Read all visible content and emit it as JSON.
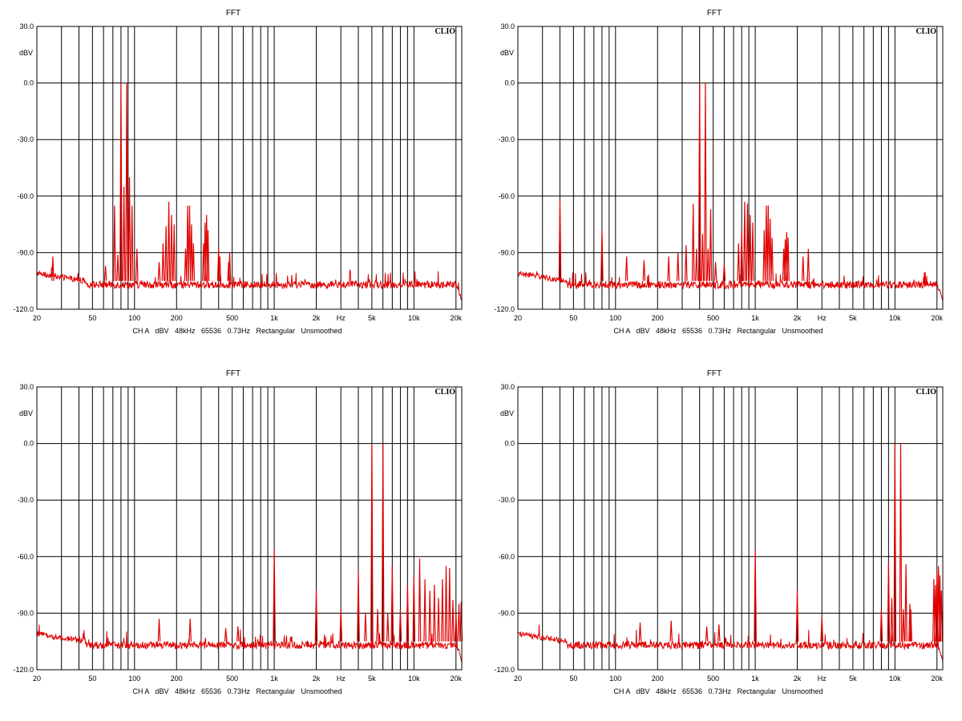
{
  "charts": [
    {
      "id": "fft-80hz"
    },
    {
      "id": "fft-400hz"
    },
    {
      "id": "fft-5khz"
    },
    {
      "id": "fft-10khz"
    }
  ],
  "colors": {
    "trace": "#e00000",
    "grid": "#000000",
    "background": "#ffffff"
  },
  "chart_data": [
    {
      "type": "line",
      "title": "FFT",
      "brand": "CLIO",
      "ylabel": "dBV",
      "xlabel": "Hz",
      "info": "CH A   dBV   48kHz   65536   0.73Hz   Rectangular   Unsmoothed",
      "xscale": "log",
      "xlim": [
        20,
        22000
      ],
      "ylim": [
        -120,
        30
      ],
      "y_ticks": [
        "30.0",
        "0.0",
        "-30.0",
        "-60.0",
        "-90.0",
        "-120.0"
      ],
      "y_tick_values": [
        30,
        0,
        -30,
        -60,
        -90,
        -120
      ],
      "x_ticks": [
        "20",
        "50",
        "100",
        "200",
        "500",
        "1k",
        "2k",
        "5k",
        "10k",
        "20k"
      ],
      "x_tick_values": [
        20,
        50,
        100,
        200,
        500,
        1000,
        2000,
        5000,
        10000,
        20000
      ],
      "noise_floor_db": -107,
      "series": [
        {
          "values": [
            [
              80,
              0
            ],
            [
              88,
              0
            ],
            [
              26,
              -92
            ],
            [
              62,
              -97
            ],
            [
              72,
              -65
            ],
            [
              76,
              -91
            ],
            [
              84,
              -55
            ],
            [
              92,
              -50
            ],
            [
              96,
              -65
            ],
            [
              104,
              -88
            ],
            [
              150,
              -95
            ],
            [
              160,
              -85
            ],
            [
              168,
              -76
            ],
            [
              176,
              -63
            ],
            [
              184,
              -70
            ],
            [
              192,
              -75
            ],
            [
              232,
              -88
            ],
            [
              240,
              -65
            ],
            [
              248,
              -65
            ],
            [
              256,
              -75
            ],
            [
              264,
              -85
            ],
            [
              312,
              -85
            ],
            [
              320,
              -74
            ],
            [
              328,
              -70
            ],
            [
              336,
              -78
            ],
            [
              400,
              -88
            ],
            [
              408,
              -92
            ],
            [
              472,
              -95
            ],
            [
              480,
              -90
            ]
          ]
        }
      ]
    },
    {
      "type": "line",
      "title": "FFT",
      "brand": "CLIO",
      "ylabel": "dBV",
      "xlabel": "Hz",
      "info": "CH A   dBV   48kHz   65536   0.73Hz   Rectangular   Unsmoothed",
      "xscale": "log",
      "xlim": [
        20,
        22000
      ],
      "ylim": [
        -120,
        30
      ],
      "y_ticks": [
        "30.0",
        "0.0",
        "-30.0",
        "-60.0",
        "-90.0",
        "-120.0"
      ],
      "y_tick_values": [
        30,
        0,
        -30,
        -60,
        -90,
        -120
      ],
      "x_ticks": [
        "20",
        "50",
        "100",
        "200",
        "500",
        "1k",
        "2k",
        "5k",
        "10k",
        "20k"
      ],
      "x_tick_values": [
        20,
        50,
        100,
        200,
        500,
        1000,
        2000,
        5000,
        10000,
        20000
      ],
      "noise_floor_db": -107,
      "series": [
        {
          "values": [
            [
              400,
              0
            ],
            [
              440,
              0
            ],
            [
              40,
              -62
            ],
            [
              80,
              -78
            ],
            [
              120,
              -92
            ],
            [
              160,
              -94
            ],
            [
              240,
              -92
            ],
            [
              280,
              -90
            ],
            [
              320,
              -86
            ],
            [
              360,
              -64
            ],
            [
              380,
              -88
            ],
            [
              420,
              -80
            ],
            [
              460,
              -88
            ],
            [
              480,
              -67
            ],
            [
              520,
              -95
            ],
            [
              600,
              -96
            ],
            [
              760,
              -85
            ],
            [
              800,
              -78
            ],
            [
              840,
              -63
            ],
            [
              880,
              -64
            ],
            [
              920,
              -70
            ],
            [
              960,
              -74
            ],
            [
              1160,
              -78
            ],
            [
              1200,
              -65
            ],
            [
              1240,
              -65
            ],
            [
              1280,
              -72
            ],
            [
              1320,
              -82
            ],
            [
              1600,
              -88
            ],
            [
              1640,
              -83
            ],
            [
              1680,
              -79
            ],
            [
              1720,
              -82
            ],
            [
              2200,
              -92
            ],
            [
              2400,
              -88
            ]
          ]
        }
      ]
    },
    {
      "type": "line",
      "title": "FFT",
      "brand": "CLIO",
      "ylabel": "dBV",
      "xlabel": "Hz",
      "info": "CH A   dBV   48kHz   65536   0.73Hz   Rectangular   Unsmoothed",
      "xscale": "log",
      "xlim": [
        20,
        22000
      ],
      "ylim": [
        -120,
        30
      ],
      "y_ticks": [
        "30.0",
        "0.0",
        "-30.0",
        "-60.0",
        "-90.0",
        "-120.0"
      ],
      "y_tick_values": [
        30,
        0,
        -30,
        -60,
        -90,
        -120
      ],
      "x_ticks": [
        "20",
        "50",
        "100",
        "200",
        "500",
        "1k",
        "2k",
        "5k",
        "10k",
        "20k"
      ],
      "x_tick_values": [
        20,
        50,
        100,
        200,
        500,
        1000,
        2000,
        5000,
        10000,
        20000
      ],
      "noise_floor_db": -107,
      "series": [
        {
          "values": [
            [
              5000,
              0
            ],
            [
              6000,
              0
            ],
            [
              150,
              -93
            ],
            [
              250,
              -93
            ],
            [
              450,
              -98
            ],
            [
              550,
              -97
            ],
            [
              1000,
              -56
            ],
            [
              2000,
              -78
            ],
            [
              3000,
              -88
            ],
            [
              4000,
              -68
            ],
            [
              4500,
              -90
            ],
            [
              5500,
              -88
            ],
            [
              6500,
              -90
            ],
            [
              7000,
              -65
            ],
            [
              8000,
              -88
            ],
            [
              9000,
              -75
            ],
            [
              10000,
              -70
            ],
            [
              11000,
              -61
            ],
            [
              12000,
              -72
            ],
            [
              13000,
              -78
            ],
            [
              14000,
              -75
            ],
            [
              15000,
              -82
            ],
            [
              16000,
              -72
            ],
            [
              17000,
              -65
            ],
            [
              18000,
              -66
            ],
            [
              19000,
              -83
            ],
            [
              20000,
              -90
            ],
            [
              21000,
              -85
            ],
            [
              21800,
              -84
            ]
          ]
        }
      ]
    },
    {
      "type": "line",
      "title": "FFT",
      "brand": "CLIO",
      "ylabel": "dBV",
      "xlabel": "Hz",
      "info": "CH A   dBV   48kHz   65536   0.73Hz   Rectangular   Unsmoothed",
      "xscale": "log",
      "xlim": [
        20,
        22000
      ],
      "ylim": [
        -120,
        30
      ],
      "y_ticks": [
        "30.0",
        "0.0",
        "-30.0",
        "-60.0",
        "-90.0",
        "-120.0"
      ],
      "y_tick_values": [
        30,
        0,
        -30,
        -60,
        -90,
        -120
      ],
      "x_ticks": [
        "20",
        "50",
        "100",
        "200",
        "500",
        "1k",
        "2k",
        "5k",
        "10k",
        "20k"
      ],
      "x_tick_values": [
        20,
        50,
        100,
        200,
        500,
        1000,
        2000,
        5000,
        10000,
        20000
      ],
      "noise_floor_db": -107,
      "series": [
        {
          "values": [
            [
              10000,
              0
            ],
            [
              11000,
              0
            ],
            [
              150,
              -95
            ],
            [
              250,
              -94
            ],
            [
              450,
              -97
            ],
            [
              550,
              -96
            ],
            [
              1000,
              -56
            ],
            [
              2000,
              -78
            ],
            [
              3000,
              -92
            ],
            [
              8000,
              -88
            ],
            [
              9000,
              -63
            ],
            [
              9500,
              -82
            ],
            [
              11500,
              -88
            ],
            [
              12000,
              -64
            ],
            [
              12800,
              -85
            ],
            [
              13000,
              -88
            ],
            [
              19000,
              -72
            ],
            [
              19500,
              -75
            ],
            [
              20000,
              -68
            ],
            [
              20500,
              -65
            ],
            [
              21000,
              -70
            ],
            [
              21500,
              -78
            ]
          ]
        }
      ]
    }
  ]
}
